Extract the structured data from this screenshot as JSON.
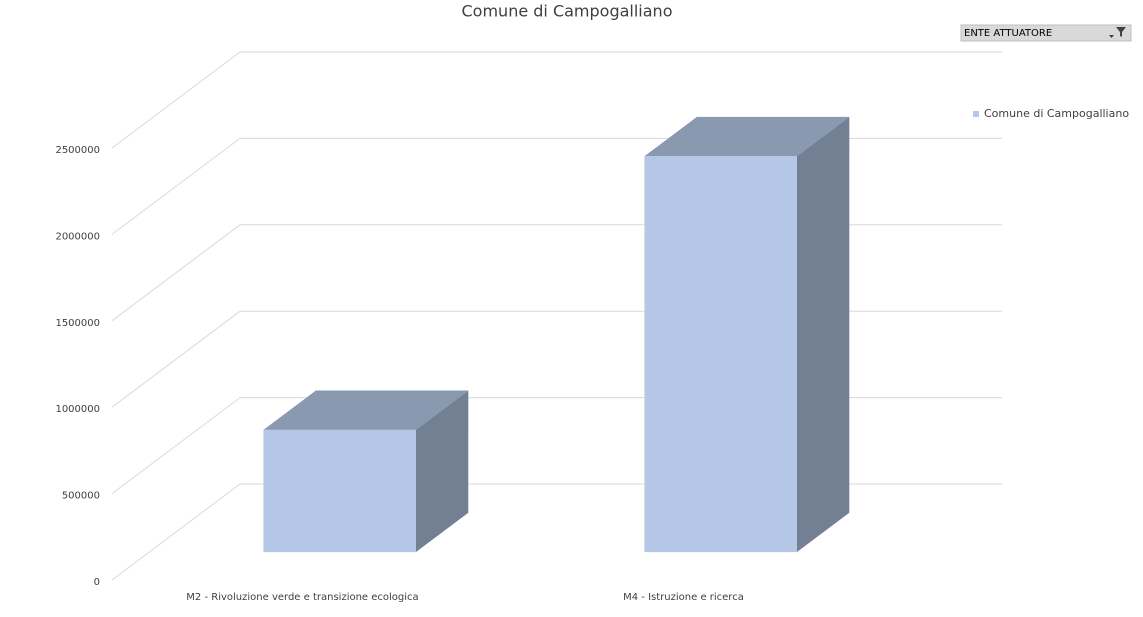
{
  "chart_data": {
    "type": "bar3d",
    "title": "Comune di Campogalliano",
    "field_button": "ENTE ATTUATORE",
    "categories": [
      "M2 - Rivoluzione verde e transizione ecologica",
      "M4 - Istruzione e ricerca"
    ],
    "series": [
      {
        "name": "Comune di Campogalliano",
        "color": "#b4c7e7",
        "values": [
          708000,
          2291000
        ]
      }
    ],
    "ylim": [
      0,
      2500000
    ],
    "yticks": [
      0,
      500000,
      1000000,
      1500000,
      2000000,
      2500000
    ],
    "grid": true,
    "legend": "right"
  }
}
